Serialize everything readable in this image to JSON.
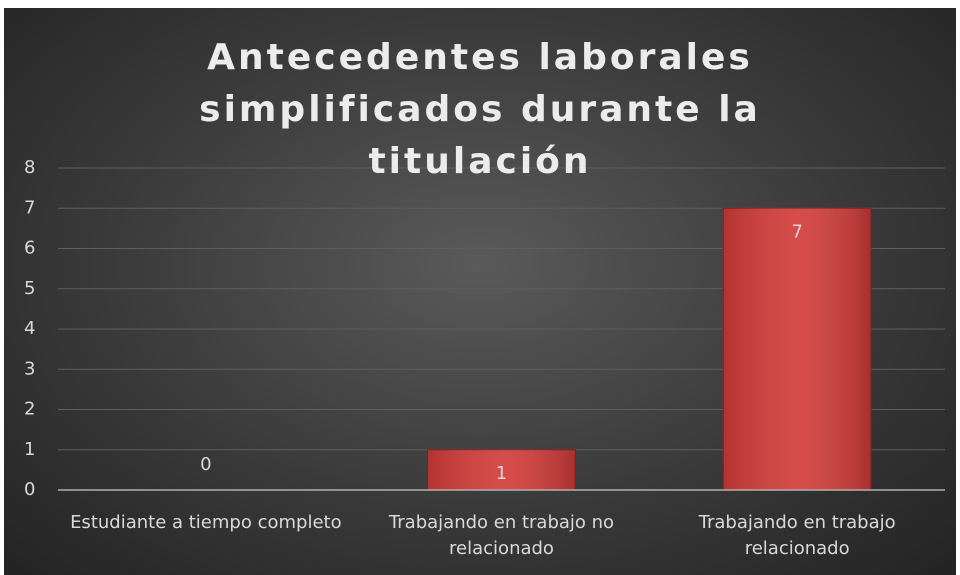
{
  "chart_data": {
    "type": "bar",
    "title": "Antecedentes laborales simplificados durante la titulación",
    "categories": [
      "Estudiante a tiempo completo",
      "Trabajando en trabajo no relacionado",
      "Trabajando en trabajo relacionado"
    ],
    "values": [
      0,
      1,
      7
    ],
    "color": "#d23c3a",
    "ylim": [
      0,
      8
    ],
    "yticks": [
      0,
      1,
      2,
      3,
      4,
      5,
      6,
      7,
      8
    ],
    "grid": true
  }
}
